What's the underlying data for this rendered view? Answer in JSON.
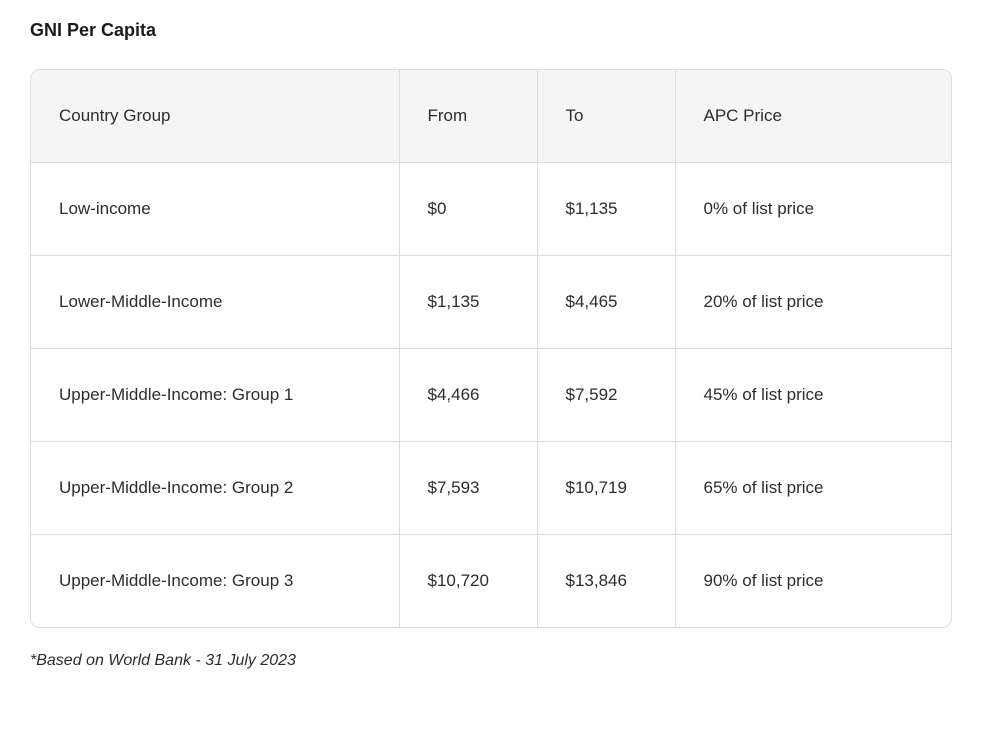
{
  "title": "GNI Per Capita",
  "table": {
    "columns": [
      "Country Group",
      "From",
      "To",
      "APC Price"
    ],
    "rows": [
      [
        "Low-income",
        "$0",
        "$1,135",
        "0% of list price"
      ],
      [
        "Lower-Middle-Income",
        "$1,135",
        "$4,465",
        "20% of list price"
      ],
      [
        "Upper-Middle-Income: Group 1",
        "$4,466",
        "$7,592",
        "45% of list price"
      ],
      [
        "Upper-Middle-Income: Group 2",
        "$7,593",
        "$10,719",
        "65% of list price"
      ],
      [
        "Upper-Middle-Income: Group 3",
        "$10,720",
        "$13,846",
        "90% of list price"
      ]
    ],
    "header_bg": "#f5f5f5",
    "border_color": "#dcdcdc",
    "border_radius": 10,
    "cell_padding": "36px 28px",
    "font_size": 17,
    "column_widths": [
      "40%",
      "15%",
      "15%",
      "30%"
    ]
  },
  "footnote": "*Based on World Bank - 31 July 2023",
  "colors": {
    "background": "#ffffff",
    "text": "#2d2d2d",
    "title_text": "#1a1a1a"
  }
}
